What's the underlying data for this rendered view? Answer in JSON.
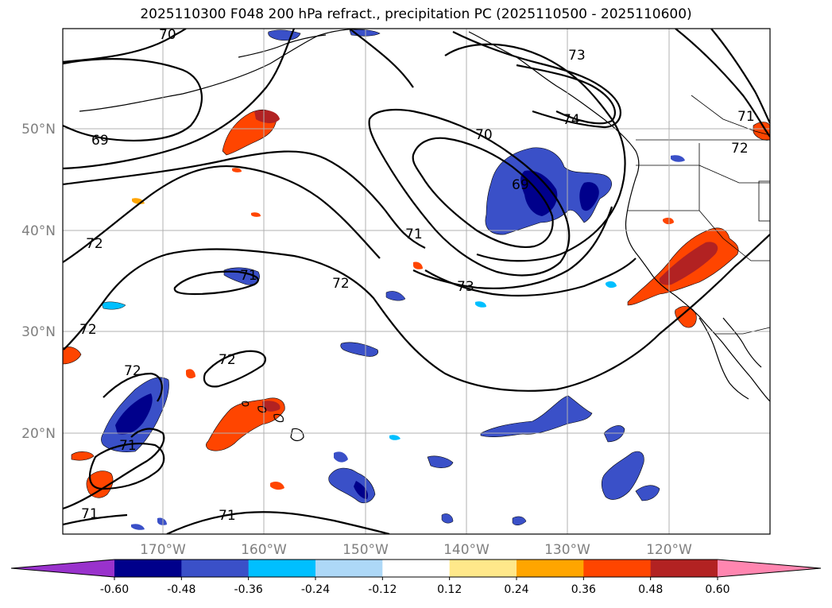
{
  "title": "2025110300 F048 200 hPa refract., precipitation PC (2025110500 - 2025110600)",
  "lat_labels": [
    "50°N",
    "40°N",
    "30°N",
    "20°N"
  ],
  "lon_labels": [
    "170°W",
    "160°W",
    "150°W",
    "140°W",
    "130°W",
    "120°W"
  ],
  "contour_labels": [
    {
      "text": "70",
      "pos": "top-left"
    },
    {
      "text": "73",
      "pos": "top-center"
    },
    {
      "text": "74",
      "pos": "top-center"
    },
    {
      "text": "71",
      "pos": "top-right"
    },
    {
      "text": "72",
      "pos": "top-right"
    },
    {
      "text": "69",
      "pos": "left"
    },
    {
      "text": "70",
      "pos": "center"
    },
    {
      "text": "69",
      "pos": "center"
    },
    {
      "text": "71",
      "pos": "center"
    },
    {
      "text": "72",
      "pos": "left"
    },
    {
      "text": "71",
      "pos": "left"
    },
    {
      "text": "72",
      "pos": "center"
    },
    {
      "text": "73",
      "pos": "center"
    },
    {
      "text": "72",
      "pos": "bottom-left"
    },
    {
      "text": "72",
      "pos": "bottom-left"
    },
    {
      "text": "72",
      "pos": "bottom-left"
    },
    {
      "text": "71",
      "pos": "bottom-left"
    },
    {
      "text": "71",
      "pos": "bottom-left"
    },
    {
      "text": "71",
      "pos": "bottom-center"
    }
  ],
  "colorbar": {
    "levels": [
      "-0.60",
      "-0.48",
      "-0.36",
      "-0.24",
      "-0.12",
      "0.12",
      "0.24",
      "0.36",
      "0.48",
      "0.60"
    ],
    "colors": [
      "#9932cc",
      "#00008b",
      "#3a50c8",
      "#00bfff",
      "#add8f7",
      "#ffffff",
      "#ffe88a",
      "#ffa500",
      "#ff4500",
      "#b22222",
      "#ff86b0"
    ]
  }
}
